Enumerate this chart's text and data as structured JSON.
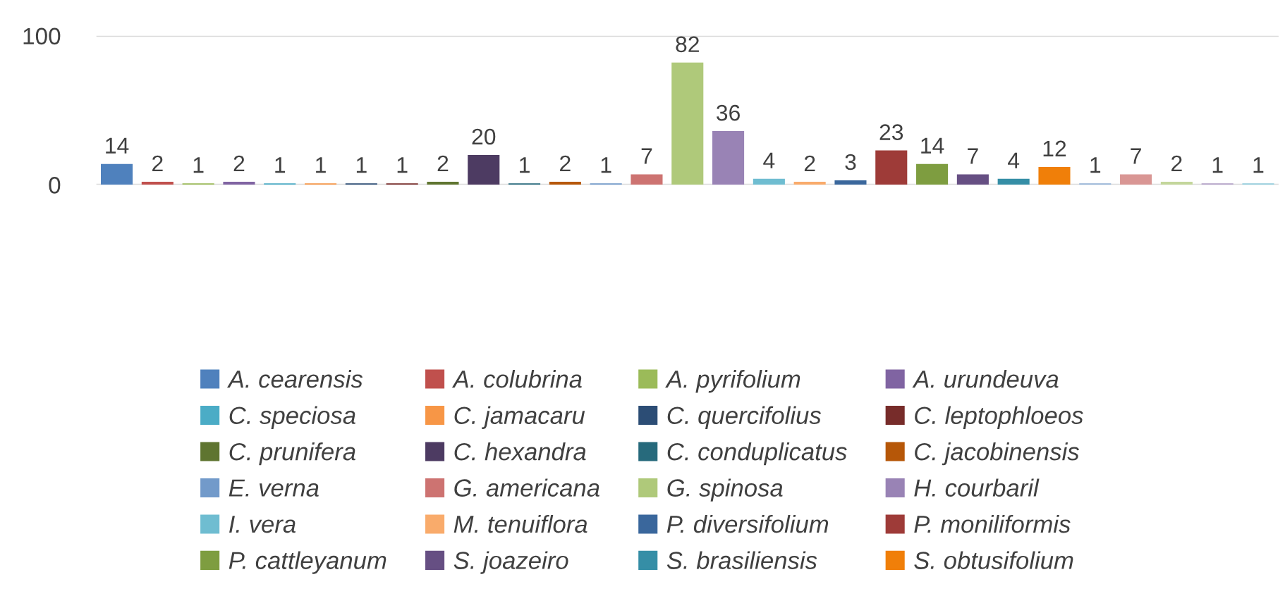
{
  "chart_data": {
    "type": "bar",
    "categories": [
      null
    ],
    "ylim": [
      0,
      100
    ],
    "yticks": [
      0,
      100
    ],
    "grid": "y",
    "legend": "bottom",
    "data_labels": true,
    "series": [
      {
        "name": "A. cearensis",
        "color": "#4f81bd",
        "values": [
          14
        ]
      },
      {
        "name": "A. colubrina",
        "color": "#c0504d",
        "values": [
          2
        ]
      },
      {
        "name": "A. pyrifolium",
        "color": "#9bbb59",
        "values": [
          1
        ]
      },
      {
        "name": "A. urundeuva",
        "color": "#8064a2",
        "values": [
          2
        ]
      },
      {
        "name": "C. speciosa",
        "color": "#4bacc6",
        "values": [
          1
        ]
      },
      {
        "name": "C. jamacaru",
        "color": "#f79646",
        "values": [
          1
        ]
      },
      {
        "name": "C. quercifolius",
        "color": "#2c4d75",
        "values": [
          1
        ]
      },
      {
        "name": "C. leptophloeos",
        "color": "#772c2a",
        "values": [
          1
        ]
      },
      {
        "name": "C. prunifera",
        "color": "#5f7530",
        "values": [
          2
        ]
      },
      {
        "name": "C. hexandra",
        "color": "#4d3b62",
        "values": [
          20
        ]
      },
      {
        "name": "C. conduplicatus",
        "color": "#276a7c",
        "values": [
          1
        ]
      },
      {
        "name": "C. jacobinensis",
        "color": "#b65708",
        "values": [
          2
        ]
      },
      {
        "name": "E. verna",
        "color": "#729aca",
        "values": [
          1
        ]
      },
      {
        "name": "G. americana",
        "color": "#cd7371",
        "values": [
          7
        ]
      },
      {
        "name": "G. spinosa",
        "color": "#afc97a",
        "values": [
          82
        ]
      },
      {
        "name": "H. courbaril",
        "color": "#9983b5",
        "values": [
          36
        ]
      },
      {
        "name": "I. vera",
        "color": "#6fbdd1",
        "values": [
          4
        ]
      },
      {
        "name": "M. tenuiflora",
        "color": "#f9ab6b",
        "values": [
          2
        ]
      },
      {
        "name": "P. diversifolium",
        "color": "#3a679c",
        "values": [
          3
        ]
      },
      {
        "name": "P. moniliformis",
        "color": "#9e3b38",
        "values": [
          23
        ]
      },
      {
        "name": "P. cattleyanum",
        "color": "#7e9d40",
        "values": [
          14
        ]
      },
      {
        "name": "S. joazeiro",
        "color": "#664f83",
        "values": [
          7
        ]
      },
      {
        "name": "S. brasiliensis",
        "color": "#358ea6",
        "values": [
          4
        ]
      },
      {
        "name": "S. obtusifolium",
        "color": "#f07f09",
        "values": [
          12
        ]
      },
      {
        "color": "#95b3d7",
        "values": [
          1
        ]
      },
      {
        "color": "#d99694",
        "values": [
          7
        ]
      },
      {
        "color": "#c3d69b",
        "values": [
          2
        ]
      },
      {
        "color": "#b3a2c7",
        "values": [
          1
        ]
      },
      {
        "color": "#93cddd",
        "values": [
          1
        ]
      }
    ]
  }
}
